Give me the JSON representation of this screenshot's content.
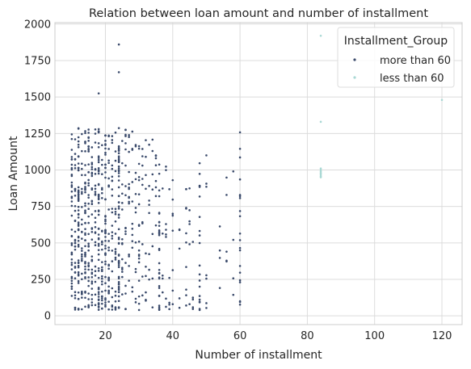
{
  "chart_data": {
    "type": "scatter",
    "title": "Relation between loan amount and number of installment",
    "xlabel": "Number of installment",
    "ylabel": "Loan Amount",
    "xlim": [
      5,
      126
    ],
    "ylim": [
      -60,
      2010
    ],
    "xticks": [
      20,
      40,
      60,
      80,
      100,
      120
    ],
    "yticks": [
      0,
      250,
      500,
      750,
      1000,
      1250,
      1500,
      1750,
      2000
    ],
    "grid": true,
    "legend": {
      "title": "Installment_Group",
      "placement": "top-right"
    },
    "series": [
      {
        "name": "more than 60",
        "color": "#3a4a6b",
        "note_generation": "dense vertical columns at integer installment counts 10-60, amounts 40-1300",
        "columns": [
          10,
          11,
          12,
          13,
          14,
          15,
          16,
          17,
          18,
          19,
          20,
          21,
          22,
          23,
          24,
          25,
          26,
          27,
          28,
          29,
          30,
          31,
          32,
          33,
          34,
          35,
          36,
          37,
          38,
          39,
          40,
          42,
          44,
          45,
          46,
          48,
          50,
          54,
          56,
          58,
          60
        ],
        "column_density": [
          40,
          35,
          60,
          30,
          45,
          40,
          35,
          25,
          55,
          30,
          45,
          25,
          25,
          20,
          55,
          15,
          18,
          15,
          12,
          12,
          18,
          10,
          10,
          8,
          8,
          8,
          30,
          5,
          8,
          5,
          8,
          5,
          10,
          5,
          5,
          20,
          6,
          4,
          4,
          3,
          18
        ],
        "column_max": [
          1250,
          1290,
          1290,
          1290,
          1290,
          1290,
          1290,
          1290,
          1290,
          1290,
          1290,
          1290,
          1290,
          1290,
          1290,
          1290,
          1290,
          1290,
          1290,
          1290,
          1250,
          1250,
          1250,
          1250,
          1250,
          1250,
          1250,
          1000,
          1100,
          1000,
          1050,
          1050,
          1050,
          1000,
          1000,
          1250,
          1000,
          1000,
          1000,
          1000,
          1290
        ],
        "extra_points": [
          [
            18,
            1525
          ],
          [
            24,
            1860
          ],
          [
            24,
            1670
          ],
          [
            30,
            40
          ],
          [
            45,
            80
          ],
          [
            56,
            440
          ],
          [
            60,
            100
          ],
          [
            60,
            95
          ],
          [
            58,
            990
          ],
          [
            50,
            1100
          ]
        ]
      },
      {
        "name": "less than 60",
        "color": "#a9d8d4",
        "points": [
          [
            84,
            1920
          ],
          [
            84,
            1330
          ],
          [
            84,
            1010
          ],
          [
            84,
            1000
          ],
          [
            84,
            990
          ],
          [
            84,
            980
          ],
          [
            84,
            975
          ],
          [
            84,
            965
          ],
          [
            84,
            955
          ],
          [
            84,
            950
          ],
          [
            120,
            1480
          ]
        ]
      }
    ]
  }
}
